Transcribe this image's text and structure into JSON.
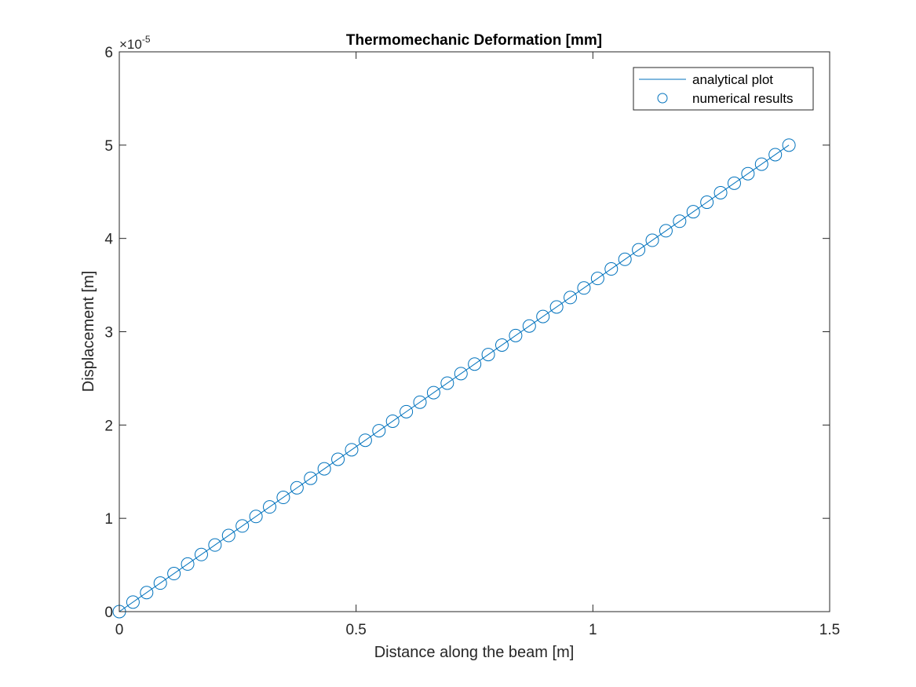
{
  "chart_data": {
    "type": "line",
    "title": "Thermomechanic Deformation [mm]",
    "xlabel": "Distance along the beam [m]",
    "ylabel": "Displacement [m]",
    "xlim": [
      0,
      1.5
    ],
    "ylim": [
      0,
      6
    ],
    "y_multiplier_base": "×10",
    "y_multiplier_exponent": "-5",
    "xticks": [
      0,
      0.5,
      1,
      1.5
    ],
    "xtick_labels": [
      "0",
      "0.5",
      "1",
      "1.5"
    ],
    "yticks": [
      0,
      1,
      2,
      3,
      4,
      5,
      6
    ],
    "ytick_labels": [
      "0",
      "1",
      "2",
      "3",
      "4",
      "5",
      "6"
    ],
    "grid": false,
    "legend_position": "top-right",
    "series": [
      {
        "name": "analytical plot",
        "style": "line",
        "color": "#0072BD",
        "x": [
          0,
          1.414
        ],
        "y": [
          0,
          5.0
        ]
      },
      {
        "name": "numerical results",
        "style": "circle-marker",
        "color": "#0072BD",
        "x": [
          0,
          0.02886,
          0.05771,
          0.08657,
          0.11543,
          0.14429,
          0.17314,
          0.202,
          0.23086,
          0.25971,
          0.28857,
          0.31743,
          0.34629,
          0.37514,
          0.404,
          0.43286,
          0.46171,
          0.49057,
          0.51943,
          0.54829,
          0.57714,
          0.606,
          0.63486,
          0.66371,
          0.69257,
          0.72143,
          0.75029,
          0.77914,
          0.808,
          0.83686,
          0.86571,
          0.89457,
          0.92343,
          0.95229,
          0.98114,
          1.01,
          1.03886,
          1.06771,
          1.09657,
          1.12543,
          1.15429,
          1.18314,
          1.212,
          1.24086,
          1.26971,
          1.29857,
          1.32743,
          1.35629,
          1.38514,
          1.414
        ],
        "y": [
          0,
          0.102,
          0.204,
          0.306,
          0.408,
          0.51,
          0.612,
          0.714,
          0.816,
          0.918,
          1.02,
          1.122,
          1.224,
          1.327,
          1.429,
          1.531,
          1.633,
          1.735,
          1.837,
          1.939,
          2.041,
          2.143,
          2.245,
          2.347,
          2.449,
          2.551,
          2.653,
          2.755,
          2.857,
          2.959,
          3.061,
          3.163,
          3.265,
          3.367,
          3.469,
          3.571,
          3.673,
          3.776,
          3.878,
          3.98,
          4.082,
          4.184,
          4.286,
          4.388,
          4.49,
          4.592,
          4.694,
          4.796,
          4.898,
          5.0
        ]
      }
    ]
  }
}
